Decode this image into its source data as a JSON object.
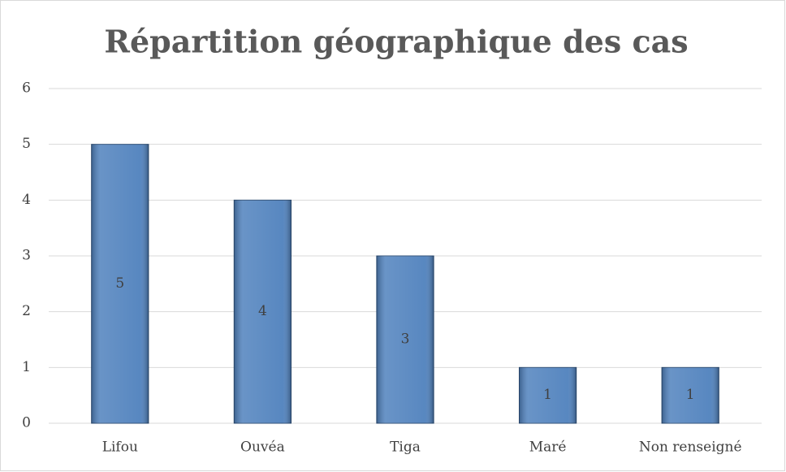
{
  "chart_data": {
    "type": "bar",
    "title": "Répartition géographique des cas",
    "categories": [
      "Lifou",
      "Ouvéa",
      "Tiga",
      "Maré",
      "Non renseigné"
    ],
    "values": [
      5,
      4,
      3,
      1,
      1
    ],
    "color": "#4f81bd",
    "ylim": [
      0,
      6
    ],
    "yticks": [
      0,
      1,
      2,
      3,
      4,
      5,
      6
    ],
    "grid": true
  }
}
